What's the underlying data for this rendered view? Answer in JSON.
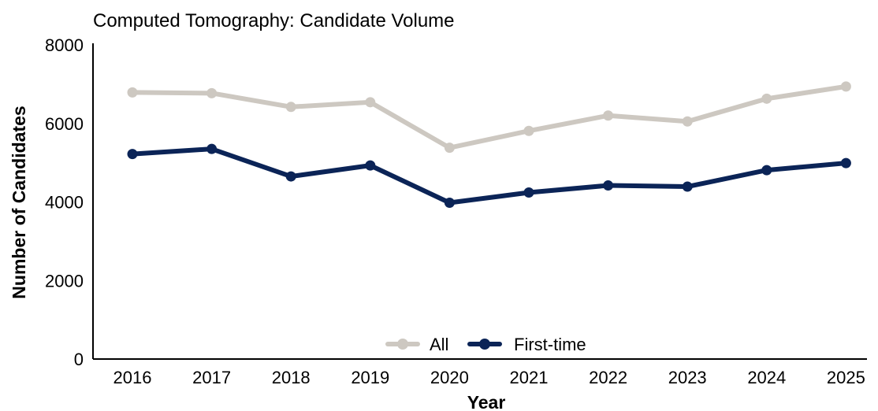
{
  "chart_data": {
    "type": "line",
    "title": "Computed Tomography: Candidate Volume",
    "xlabel": "Year",
    "ylabel": "Number of Candidates",
    "ylim": [
      0,
      8000
    ],
    "yticks": [
      "0",
      "2000",
      "4000",
      "6000",
      "8000"
    ],
    "categories": [
      "2016",
      "2017",
      "2018",
      "2019",
      "2020",
      "2021",
      "2022",
      "2023",
      "2024",
      "2025"
    ],
    "grid": false,
    "legend_position": "bottom-center",
    "series": [
      {
        "name": "All",
        "color": "#cdc8c1",
        "values": [
          6790,
          6770,
          6420,
          6540,
          5380,
          5810,
          6200,
          6050,
          6630,
          6940
        ]
      },
      {
        "name": "First-time",
        "color": "#0b2457",
        "values": [
          5220,
          5350,
          4650,
          4930,
          3980,
          4240,
          4420,
          4390,
          4810,
          4990
        ]
      }
    ]
  }
}
